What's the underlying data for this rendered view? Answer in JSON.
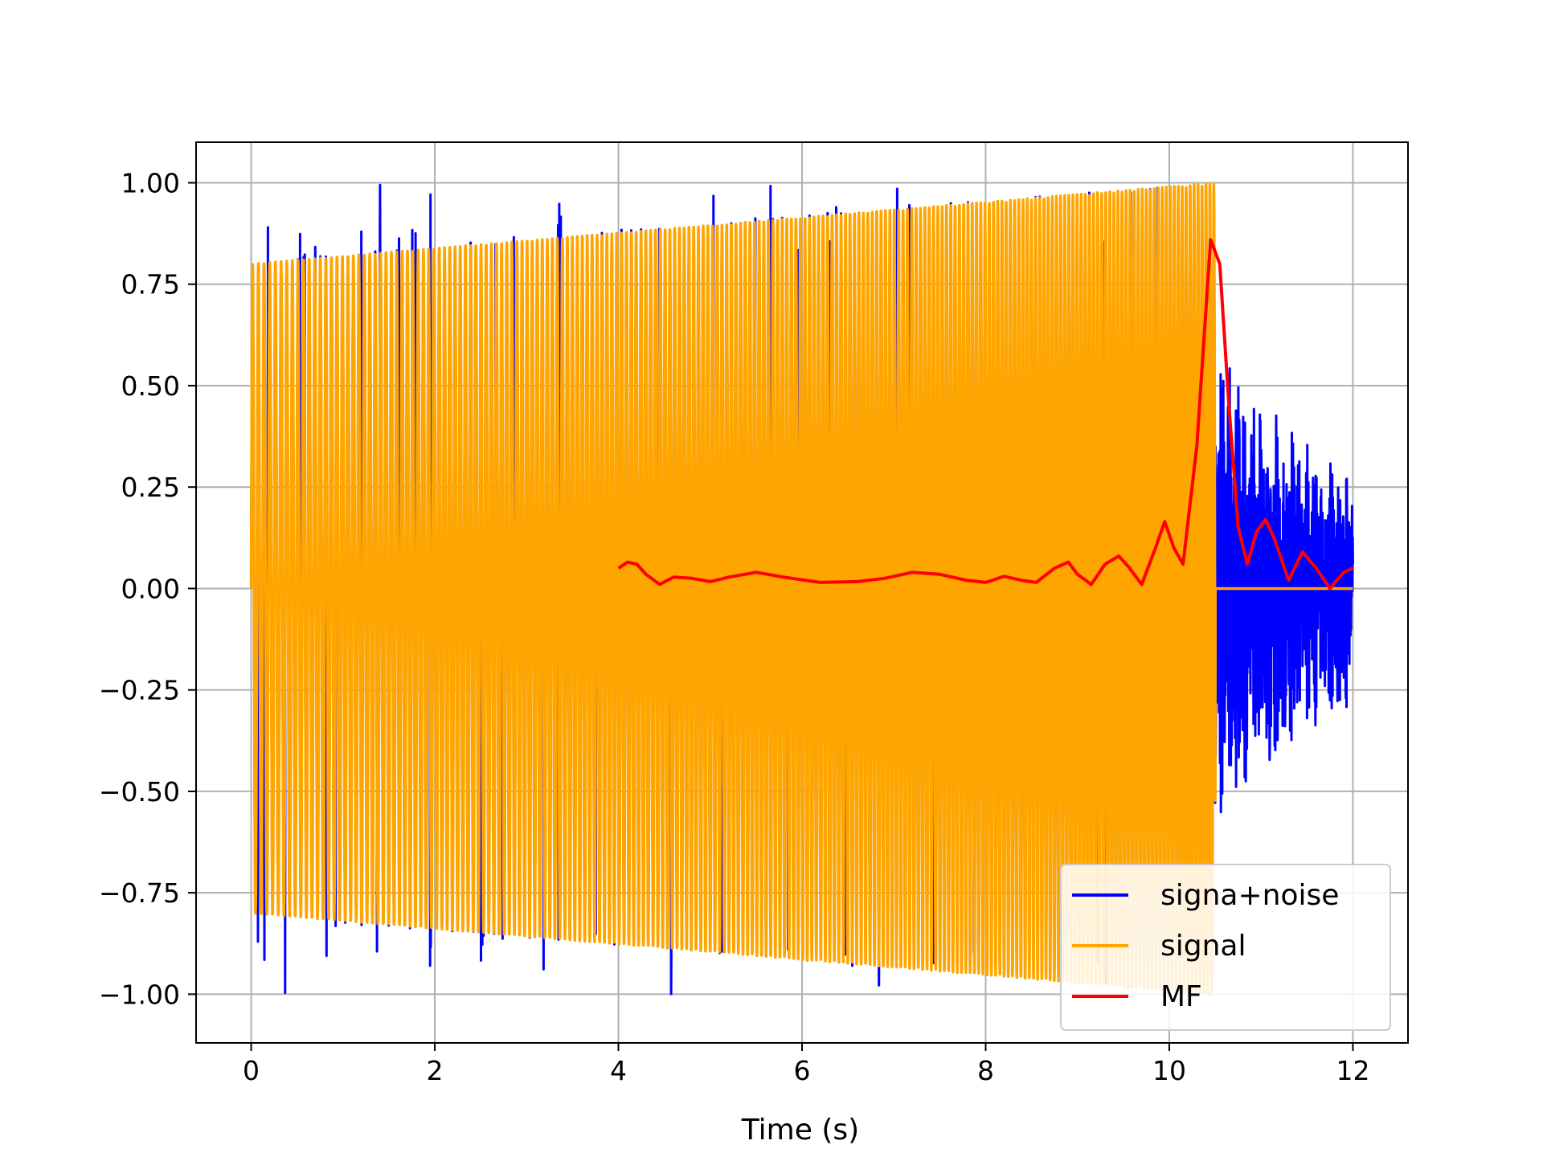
{
  "chart_data": {
    "type": "line",
    "xlabel": "Time (s)",
    "ylabel": "",
    "xlim": [
      -0.6,
      12.6
    ],
    "ylim": [
      -1.12,
      1.1
    ],
    "xticks": [
      0,
      2,
      4,
      6,
      8,
      10,
      12
    ],
    "xtick_labels": [
      "0",
      "2",
      "4",
      "6",
      "8",
      "10",
      "12"
    ],
    "yticks": [
      1.0,
      0.75,
      0.5,
      0.25,
      0.0,
      -0.25,
      -0.5,
      -0.75,
      -1.0
    ],
    "ytick_labels": [
      "1.00",
      "0.75",
      "0.50",
      "0.25",
      "0.00",
      "−0.25",
      "−0.50",
      "−0.75",
      "−1.00"
    ],
    "grid": true,
    "legend_position": "lower-right",
    "series": [
      {
        "name": "signa+noise",
        "color": "#0000ff",
        "description_values": {
          "x_range": [
            0,
            12
          ],
          "envelope_start": 0.8,
          "envelope_end_at_10_5": 1.0,
          "noise_tail_range": [
            10.5,
            12
          ],
          "noise_tail_extrema": [
            -0.65,
            0.6
          ]
        }
      },
      {
        "name": "signal",
        "color": "#ffa500",
        "description_values": {
          "x_range": [
            0,
            12
          ],
          "chirp_end": 10.5,
          "envelope_start": 0.8,
          "envelope_end": 1.0,
          "after_chirp_value": 0.0
        }
      },
      {
        "name": "MF",
        "color": "#ff0000",
        "x": [
          4.0,
          4.1,
          4.2,
          4.3,
          4.45,
          4.6,
          4.8,
          5.0,
          5.2,
          5.5,
          5.8,
          6.2,
          6.6,
          6.9,
          7.2,
          7.5,
          7.8,
          8.0,
          8.2,
          8.4,
          8.55,
          8.75,
          8.9,
          9.0,
          9.15,
          9.3,
          9.45,
          9.55,
          9.7,
          9.85,
          9.95,
          10.05,
          10.15,
          10.3,
          10.45,
          10.55,
          10.65,
          10.75,
          10.85,
          10.95,
          11.05,
          11.15,
          11.3,
          11.45,
          11.6,
          11.75,
          11.9,
          12.0
        ],
        "y": [
          0.05,
          0.065,
          0.06,
          0.035,
          0.01,
          0.028,
          0.025,
          0.017,
          0.028,
          0.04,
          0.028,
          0.015,
          0.017,
          0.025,
          0.04,
          0.035,
          0.02,
          0.015,
          0.03,
          0.02,
          0.015,
          0.05,
          0.065,
          0.035,
          0.01,
          0.06,
          0.08,
          0.055,
          0.01,
          0.1,
          0.165,
          0.1,
          0.06,
          0.35,
          0.86,
          0.8,
          0.45,
          0.15,
          0.06,
          0.14,
          0.17,
          0.12,
          0.02,
          0.09,
          0.05,
          0.0,
          0.04,
          0.05
        ]
      }
    ]
  }
}
